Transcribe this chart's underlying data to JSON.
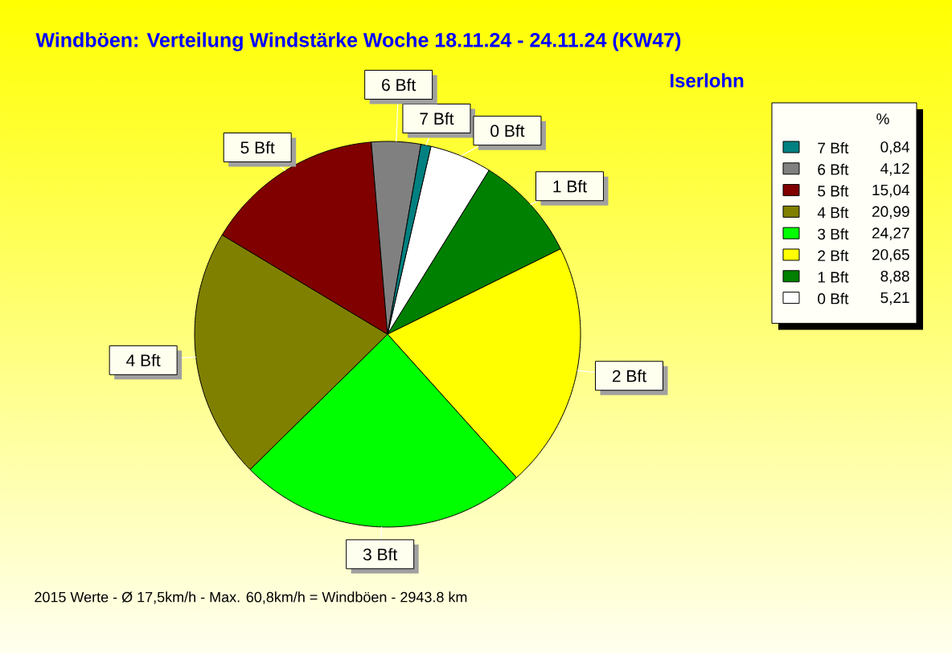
{
  "chart_data": {
    "type": "pie",
    "title": "Windböen: Verteilung Windstärke Woche 18.11.24 - 24.11.24 (KW47)",
    "subtitle": "Iserlohn",
    "legend_title": "%",
    "categories": [
      "0 Bft",
      "1 Bft",
      "2 Bft",
      "3 Bft",
      "4 Bft",
      "5 Bft",
      "6 Bft",
      "7 Bft"
    ],
    "values": [
      5.21,
      8.88,
      20.65,
      24.27,
      20.99,
      15.04,
      4.12,
      0.84
    ],
    "value_labels": [
      "5,21",
      "8,88",
      "20,65",
      "24,27",
      "20,99",
      "15,04",
      "4,12",
      "0,84"
    ],
    "colors": [
      "#ffffff",
      "#008000",
      "#ffff00",
      "#00ff00",
      "#808000",
      "#800000",
      "#808080",
      "#008080"
    ],
    "legend": "top right",
    "annotations": [
      "2015 Werte - Ø 17,5km/h - Max. 60,8km/h = Windböen - 2943.8 km"
    ]
  }
}
